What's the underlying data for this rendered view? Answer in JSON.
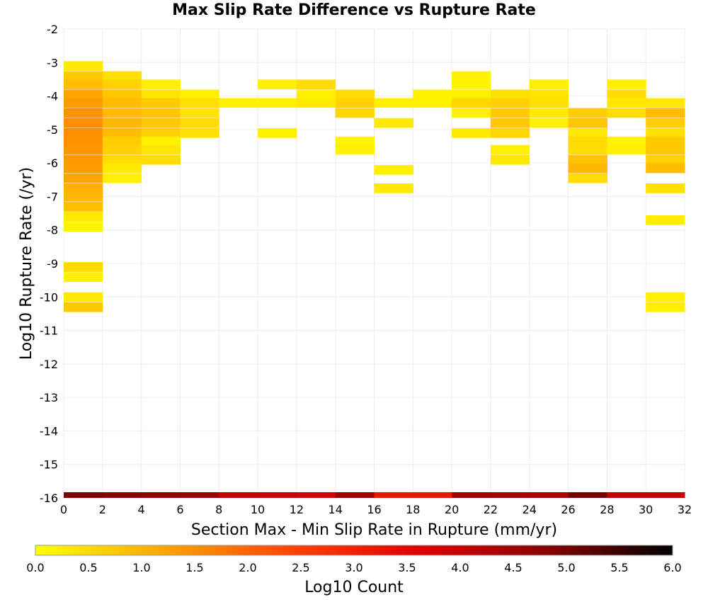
{
  "chart_data": {
    "type": "heatmap",
    "title": "Max Slip Rate Difference vs Rupture Rate",
    "xlabel": "Section Max - Min Slip Rate in Rupture (mm/yr)",
    "ylabel": "Log10 Rupture Rate (/yr)",
    "xlim": [
      0,
      32
    ],
    "ylim": [
      -16,
      -2
    ],
    "x_ticks": [
      "0",
      "2",
      "4",
      "6",
      "8",
      "10",
      "12",
      "14",
      "16",
      "18",
      "20",
      "22",
      "24",
      "26",
      "28",
      "30",
      "32"
    ],
    "y_ticks": [
      "-2",
      "-3",
      "-4",
      "-5",
      "-6",
      "-7",
      "-8",
      "-9",
      "-10",
      "-11",
      "-12",
      "-13",
      "-14",
      "-15",
      "-16"
    ],
    "grid": true,
    "x_bin_width": 2,
    "y_bin_height": 0.28,
    "colorbar": {
      "label": "Log10 Count",
      "range": [
        0.0,
        6.0
      ],
      "ticks": [
        "0.0",
        "0.5",
        "1.0",
        "1.5",
        "2.0",
        "2.5",
        "3.0",
        "3.5",
        "4.0",
        "4.5",
        "5.0",
        "5.5",
        "6.0"
      ],
      "palette": [
        "#ffff00",
        "#ffa500",
        "#ff4500",
        "#e00000",
        "#8b0000",
        "#000000"
      ]
    },
    "columns": [
      {
        "x": 0,
        "cells": [
          [
            -3.1,
            0.3
          ],
          [
            -3.4,
            0.7
          ],
          [
            -3.65,
            0.9
          ],
          [
            -3.95,
            1.2
          ],
          [
            -4.2,
            1.35
          ],
          [
            -4.5,
            1.45
          ],
          [
            -4.8,
            1.5
          ],
          [
            -5.1,
            1.5
          ],
          [
            -5.35,
            1.45
          ],
          [
            -5.6,
            1.4
          ],
          [
            -5.9,
            1.35
          ],
          [
            -6.15,
            1.3
          ],
          [
            -6.45,
            1.2
          ],
          [
            -6.75,
            1.05
          ],
          [
            -7.0,
            0.95
          ],
          [
            -7.3,
            0.85
          ],
          [
            -7.6,
            0.3
          ],
          [
            -7.9,
            0.15
          ],
          [
            -9.1,
            0.5
          ],
          [
            -9.4,
            0.2
          ],
          [
            -10.0,
            0.3
          ],
          [
            -10.3,
            0.7
          ]
        ]
      },
      {
        "x": 2,
        "cells": [
          [
            -3.4,
            0.4
          ],
          [
            -3.65,
            0.6
          ],
          [
            -3.95,
            0.75
          ],
          [
            -4.2,
            0.9
          ],
          [
            -4.5,
            0.9
          ],
          [
            -4.8,
            0.95
          ],
          [
            -5.1,
            0.9
          ],
          [
            -5.35,
            0.65
          ],
          [
            -5.6,
            0.6
          ],
          [
            -5.9,
            0.45
          ],
          [
            -6.15,
            0.3
          ],
          [
            -6.45,
            0.2
          ]
        ]
      },
      {
        "x": 4,
        "cells": [
          [
            -3.65,
            0.2
          ],
          [
            -3.95,
            0.35
          ],
          [
            -4.2,
            0.7
          ],
          [
            -4.5,
            0.75
          ],
          [
            -4.8,
            0.7
          ],
          [
            -5.1,
            0.65
          ],
          [
            -5.35,
            0.2
          ],
          [
            -5.6,
            0.35
          ],
          [
            -5.9,
            0.45
          ]
        ]
      },
      {
        "x": 6,
        "cells": [
          [
            -3.95,
            0.2
          ],
          [
            -4.2,
            0.4
          ],
          [
            -4.5,
            0.35
          ],
          [
            -4.8,
            0.45
          ],
          [
            -5.1,
            0.4
          ]
        ]
      },
      {
        "x": 8,
        "cells": [
          [
            -4.2,
            0.2
          ]
        ]
      },
      {
        "x": 10,
        "cells": [
          [
            -3.65,
            0.2
          ],
          [
            -4.2,
            0.2
          ],
          [
            -5.1,
            0.2
          ]
        ]
      },
      {
        "x": 12,
        "cells": [
          [
            -3.65,
            0.45
          ],
          [
            -3.95,
            0.2
          ],
          [
            -4.2,
            0.3
          ]
        ]
      },
      {
        "x": 14,
        "cells": [
          [
            -3.95,
            0.45
          ],
          [
            -4.2,
            0.6
          ],
          [
            -4.5,
            0.55
          ],
          [
            -5.35,
            0.15
          ],
          [
            -5.6,
            0.2
          ]
        ]
      },
      {
        "x": 16,
        "cells": [
          [
            -4.2,
            0.2
          ],
          [
            -4.8,
            0.3
          ],
          [
            -6.2,
            0.2
          ],
          [
            -6.75,
            0.3
          ]
        ]
      },
      {
        "x": 18,
        "cells": [
          [
            -3.95,
            0.2
          ],
          [
            -4.2,
            0.2
          ]
        ]
      },
      {
        "x": 20,
        "cells": [
          [
            -3.4,
            0.15
          ],
          [
            -3.65,
            0.15
          ],
          [
            -3.95,
            0.2
          ],
          [
            -4.2,
            0.55
          ],
          [
            -4.5,
            0.2
          ],
          [
            -5.1,
            0.3
          ]
        ]
      },
      {
        "x": 22,
        "cells": [
          [
            -3.95,
            0.4
          ],
          [
            -4.2,
            0.6
          ],
          [
            -4.5,
            0.7
          ],
          [
            -4.8,
            0.7
          ],
          [
            -5.1,
            0.55
          ],
          [
            -5.6,
            0.15
          ],
          [
            -5.9,
            0.3
          ]
        ]
      },
      {
        "x": 24,
        "cells": [
          [
            -3.65,
            0.2
          ],
          [
            -3.95,
            0.35
          ],
          [
            -4.2,
            0.4
          ],
          [
            -4.5,
            0.3
          ],
          [
            -4.8,
            0.2
          ]
        ]
      },
      {
        "x": 26,
        "cells": [
          [
            -4.5,
            0.65
          ],
          [
            -4.8,
            0.75
          ],
          [
            -5.1,
            0.3
          ],
          [
            -5.35,
            0.5
          ],
          [
            -5.6,
            0.45
          ],
          [
            -5.9,
            0.8
          ],
          [
            -6.15,
            0.95
          ],
          [
            -6.45,
            0.45
          ]
        ]
      },
      {
        "x": 28,
        "cells": [
          [
            -3.65,
            0.2
          ],
          [
            -3.95,
            0.45
          ],
          [
            -4.2,
            0.3
          ],
          [
            -4.5,
            0.45
          ],
          [
            -5.35,
            0.15
          ],
          [
            -5.6,
            0.2
          ]
        ]
      },
      {
        "x": 30,
        "cells": [
          [
            -4.2,
            0.3
          ],
          [
            -4.5,
            0.9
          ],
          [
            -4.8,
            0.65
          ],
          [
            -5.1,
            0.4
          ],
          [
            -5.35,
            0.7
          ],
          [
            -5.6,
            0.75
          ],
          [
            -5.9,
            0.6
          ],
          [
            -6.15,
            0.9
          ],
          [
            -6.75,
            0.4
          ],
          [
            -7.7,
            0.25
          ],
          [
            -10.0,
            0.2
          ],
          [
            -10.3,
            0.2
          ]
        ]
      }
    ],
    "bottom_row": {
      "y": -16,
      "values": [
        4.9,
        4.8,
        4.7,
        4.6,
        4.0,
        3.9,
        3.8,
        4.5,
        3.2,
        3.2,
        4.5,
        4.4,
        4.3,
        5.0,
        4.0,
        4.0
      ]
    }
  }
}
